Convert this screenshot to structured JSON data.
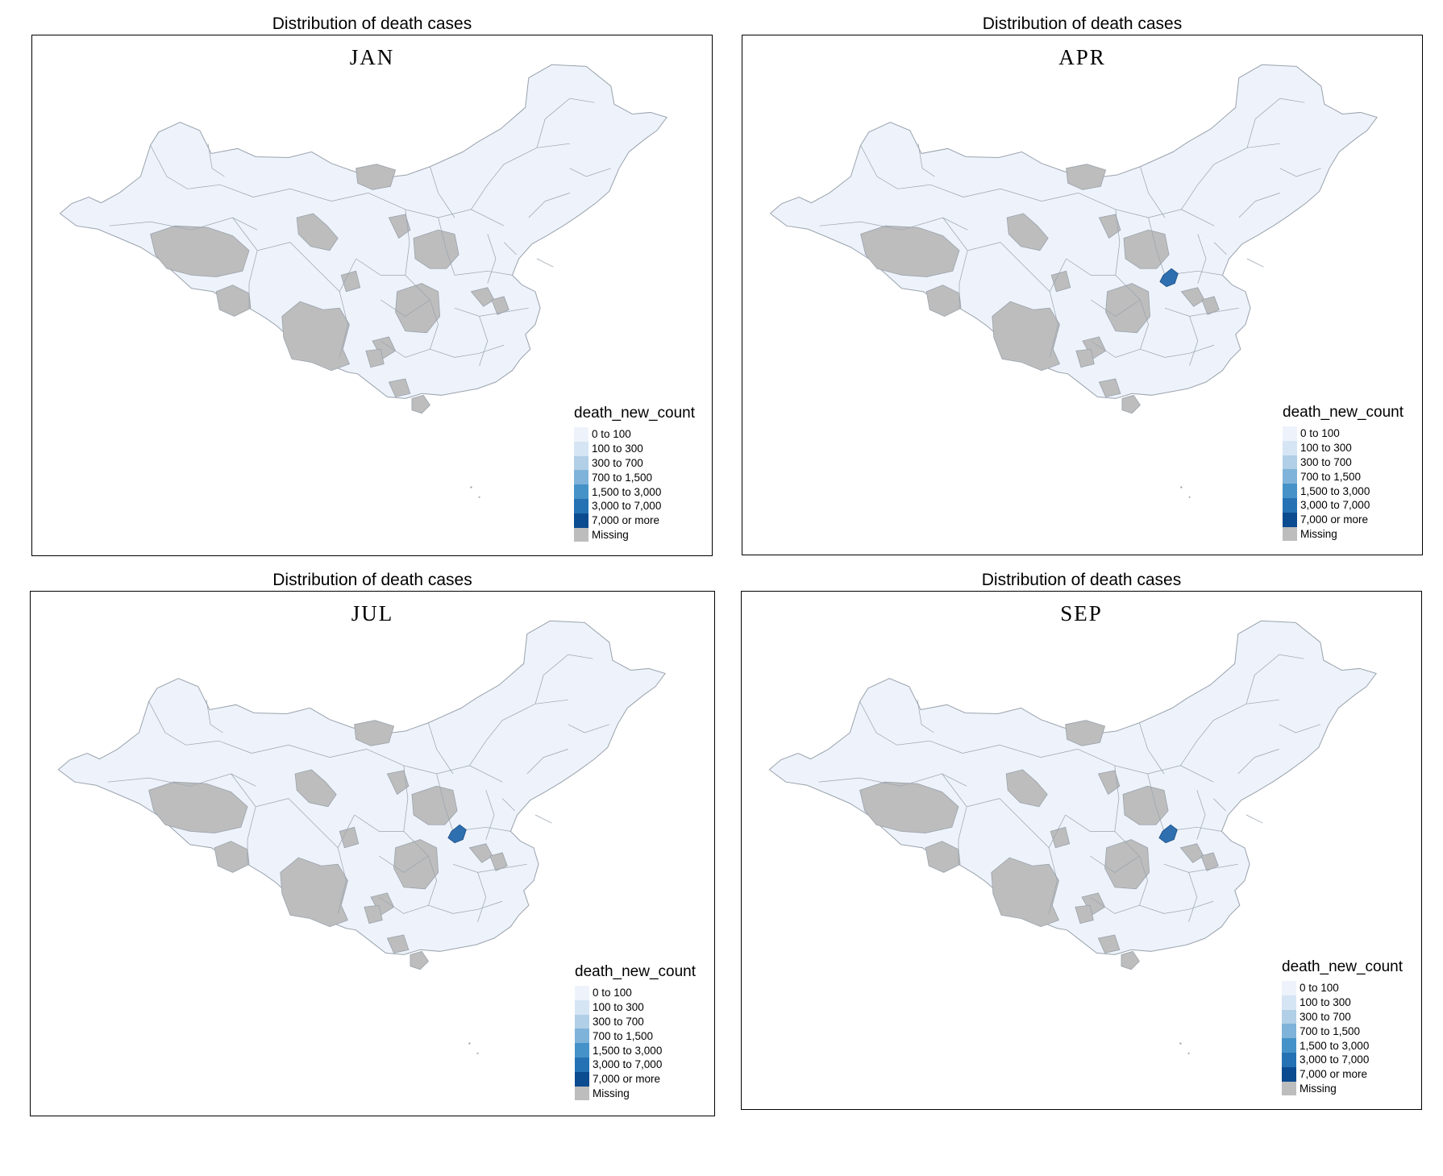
{
  "panels": [
    {
      "title": "Distribution of  death cases",
      "month": "JAN",
      "hubei": "none"
    },
    {
      "title": "Distribution of  death cases",
      "month": "APR",
      "hubei": "high"
    },
    {
      "title": "Distribution of  death cases",
      "month": "JUL",
      "hubei": "high"
    },
    {
      "title": "Distribution of  death cases",
      "month": "SEP",
      "hubei": "high"
    }
  ],
  "legend": {
    "title": "death_new_count",
    "items": [
      {
        "label": "0 to 100",
        "color": "#eef3fb"
      },
      {
        "label": "100 to 300",
        "color": "#d6e5f4"
      },
      {
        "label": "300 to 700",
        "color": "#b1cfe6"
      },
      {
        "label": "700 to 1,500",
        "color": "#7fb3d9"
      },
      {
        "label": "1,500 to 3,000",
        "color": "#4592c8"
      },
      {
        "label": "3,000 to 7,000",
        "color": "#2472b4"
      },
      {
        "label": "7,000 or more",
        "color": "#0b4b8f"
      },
      {
        "label": "Missing",
        "color": "#bdbdbd"
      }
    ]
  },
  "colors": {
    "land": "#eef3fb",
    "missing": "#bdbdbd",
    "border": "#9aa3ad",
    "hubei_high": "#2e6fb0"
  }
}
